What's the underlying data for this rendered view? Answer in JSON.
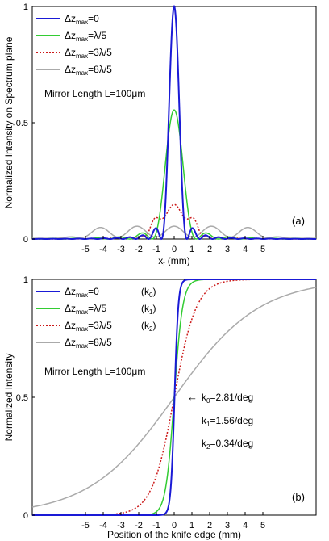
{
  "chart_data": [
    {
      "type": "line",
      "panel_label": "(a)",
      "xlabel_main": "x",
      "xlabel_sub": "f",
      "xlabel_unit": " (mm)",
      "ylabel": "Normalized Intensity on Spectrum plane",
      "xlim": [
        -8,
        8
      ],
      "ylim": [
        0,
        1
      ],
      "x_ticks": [
        -5,
        -4,
        -3,
        -2,
        -1,
        0,
        1,
        2,
        3,
        4,
        5
      ],
      "y_ticks": [
        0,
        0.5,
        1
      ],
      "annotation": "Mirror Length L=100μm",
      "legend_position": "top-left",
      "grid": false,
      "series": [
        {
          "legend_main": "Δz",
          "legend_sub": "max",
          "legend_rest": "=0",
          "color": "#1a1ad6",
          "dash": "solid"
        },
        {
          "legend_main": "Δz",
          "legend_sub": "max",
          "legend_rest": "=λ/5",
          "color": "#33cc33",
          "dash": "solid"
        },
        {
          "legend_main": "Δz",
          "legend_sub": "max",
          "legend_rest": "=3λ/5",
          "color": "#cc1a1a",
          "dash": "dotted"
        },
        {
          "legend_main": "Δz",
          "legend_sub": "max",
          "legend_rest": "=8λ/5",
          "color": "#aaaaaa",
          "dash": "solid"
        }
      ]
    },
    {
      "type": "line",
      "panel_label": "(b)",
      "xlabel": "Position of the knife edge (mm)",
      "ylabel": "Normalized Intensity",
      "xlim": [
        -8,
        8
      ],
      "ylim": [
        0,
        1
      ],
      "x_ticks": [
        -5,
        -4,
        -3,
        -2,
        -1,
        0,
        1,
        2,
        3,
        4,
        5
      ],
      "y_ticks": [
        0,
        0.5,
        1
      ],
      "annotation": "Mirror Length L=100μm",
      "slope_labels": [
        {
          "main": "k",
          "sub": "0",
          "rest": "=2.81/deg"
        },
        {
          "main": "k",
          "sub": "1",
          "rest": "=1.56/deg"
        },
        {
          "main": "k",
          "sub": "2",
          "rest": "=0.34/deg"
        }
      ],
      "arrow_glyph": "←",
      "legend_position": "top-left",
      "grid": false,
      "series": [
        {
          "legend_main": "Δz",
          "legend_sub": "max",
          "legend_rest": "=0",
          "tag_main": "(k",
          "tag_sub": "0",
          "tag_rest": ")",
          "color": "#1a1ad6",
          "dash": "solid"
        },
        {
          "legend_main": "Δz",
          "legend_sub": "max",
          "legend_rest": "=λ/5",
          "tag_main": "(k",
          "tag_sub": "1",
          "tag_rest": ")",
          "color": "#33cc33",
          "dash": "solid"
        },
        {
          "legend_main": "Δz",
          "legend_sub": "max",
          "legend_rest": "=3λ/5",
          "tag_main": "(k",
          "tag_sub": "2",
          "tag_rest": ")",
          "color": "#cc1a1a",
          "dash": "dotted"
        },
        {
          "legend_main": "Δz",
          "legend_sub": "max",
          "legend_rest": "=8λ/5",
          "tag_main": "",
          "tag_sub": "",
          "tag_rest": "",
          "color": "#aaaaaa",
          "dash": "solid"
        }
      ]
    }
  ]
}
